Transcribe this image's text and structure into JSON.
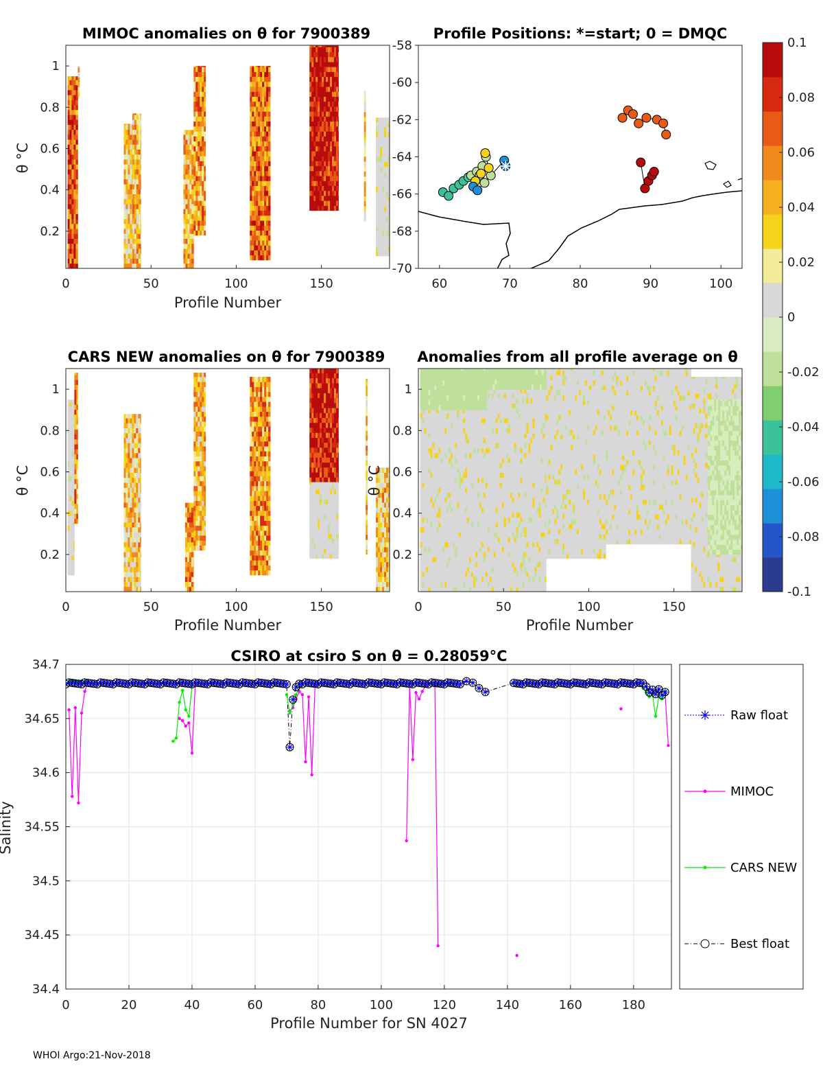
{
  "colors": {
    "raw_float": "#0000ff",
    "mimoc": "#ff00ff",
    "cars_new": "#00ee00",
    "best_float": "#000000",
    "grid": "#e3e3e3",
    "land": "#000000",
    "colorbar": [
      "#2b3b8f",
      "#2556c9",
      "#1f8fd8",
      "#1fb8c9",
      "#3cc29a",
      "#7fcf6e",
      "#bfe09a",
      "#d9ecc0",
      "#d8d8d8",
      "#f2eb9a",
      "#f5d31a",
      "#f4b020",
      "#f08a1e",
      "#e85b17",
      "#d62a10",
      "#b80c0c"
    ]
  },
  "chart_data": [
    {
      "id": "mimoc_anom",
      "type": "heatmap",
      "title": "MIMOC anomalies on θ  for 7900389",
      "xlabel": "Profile Number",
      "ylabel": "θ °C",
      "xlim": [
        0,
        190
      ],
      "ylim": [
        0.02,
        1.1
      ],
      "xticks": [
        0,
        50,
        100,
        150
      ],
      "yticks": [
        0.2,
        0.4,
        0.6,
        0.8,
        1
      ],
      "bands": [
        {
          "x": [
            1,
            7
          ],
          "ymin": 0.02,
          "ymax": 0.95,
          "level": 0.07
        },
        {
          "x": [
            7,
            8
          ],
          "ymin": 0.85,
          "ymax": 1.0,
          "level": 0.03
        },
        {
          "x": [
            34,
            39
          ],
          "ymin": 0.02,
          "ymax": 0.72,
          "level": 0.03
        },
        {
          "x": [
            39,
            44
          ],
          "ymin": 0.02,
          "ymax": 0.77,
          "level": 0.04
        },
        {
          "x": [
            69,
            75
          ],
          "ymin": 0.02,
          "ymax": 0.69,
          "level": 0.04
        },
        {
          "x": [
            75,
            82
          ],
          "ymin": 0.18,
          "ymax": 1.0,
          "level": 0.05
        },
        {
          "x": [
            108,
            120
          ],
          "ymin": 0.06,
          "ymax": 1.0,
          "level": 0.06
        },
        {
          "x": [
            143,
            160
          ],
          "ymin": 0.3,
          "ymax": 1.1,
          "level": 0.09
        },
        {
          "x": [
            175,
            176
          ],
          "ymin": 0.25,
          "ymax": 0.88,
          "level": 0.03
        },
        {
          "x": [
            182,
            190
          ],
          "ymin": 0.08,
          "ymax": 0.75,
          "level": 0.0
        }
      ]
    },
    {
      "id": "positions",
      "type": "scatter",
      "title": "Profile Positions: *=start; 0 = DMQC",
      "xlim": [
        57,
        103
      ],
      "ylim": [
        -70,
        -58
      ],
      "xticks": [
        60,
        70,
        80,
        90,
        100
      ],
      "yticks": [
        -58,
        -60,
        -62,
        -64,
        -66,
        -68,
        -70
      ],
      "groups": [
        {
          "level": -0.045,
          "lon": [
            60.5,
            61.3,
            62.0,
            62.8,
            63.4,
            64.1
          ],
          "lat": [
            -65.9,
            -66.1,
            -65.7,
            -65.5,
            -65.3,
            -65.1
          ]
        },
        {
          "level": -0.02,
          "lon": [
            64.5,
            65.3,
            66.1,
            66.6,
            67.3,
            66.4,
            65.7
          ],
          "lat": [
            -65.0,
            -64.8,
            -64.5,
            -64.0,
            -65.0,
            -65.4,
            -65.0
          ]
        },
        {
          "level": 0.03,
          "lon": [
            66.5,
            67.0,
            65.9,
            65.1
          ],
          "lat": [
            -63.8,
            -64.6,
            -64.9,
            -65.3
          ]
        },
        {
          "level": -0.075,
          "lon": [
            64.8,
            65.4,
            69.2,
            69.4
          ],
          "lat": [
            -65.6,
            -65.8,
            -64.2,
            -64.5
          ]
        },
        {
          "level": 0.065,
          "lon": [
            86.0,
            86.8,
            87.5,
            88.3,
            89.4,
            90.9,
            91.8,
            92.2
          ],
          "lat": [
            -61.9,
            -61.5,
            -61.7,
            -62.2,
            -61.9,
            -62.0,
            -62.2,
            -62.8
          ]
        },
        {
          "level": 0.095,
          "lon": [
            88.6,
            89.2,
            89.7,
            90.2,
            90.5
          ],
          "lat": [
            -64.3,
            -65.7,
            -65.3,
            -65.0,
            -64.8
          ]
        }
      ],
      "start_marker": {
        "lon": 69.4,
        "lat": -64.5
      }
    },
    {
      "id": "cars_anom",
      "type": "heatmap",
      "title": "CARS NEW anomalies on θ for 7900389",
      "xlabel": "Profile Number",
      "ylabel": "θ °C",
      "xlim": [
        0,
        190
      ],
      "ylim": [
        0.02,
        1.1
      ],
      "xticks": [
        0,
        50,
        100,
        150
      ],
      "yticks": [
        0.2,
        0.4,
        0.6,
        0.8,
        1
      ],
      "bands": [
        {
          "x": [
            1,
            5
          ],
          "ymin": 0.1,
          "ymax": 0.95,
          "level": 0.0
        },
        {
          "x": [
            5,
            7
          ],
          "ymin": 0.35,
          "ymax": 1.08,
          "level": 0.05
        },
        {
          "x": [
            34,
            44
          ],
          "ymin": 0.02,
          "ymax": 0.88,
          "level": 0.03
        },
        {
          "x": [
            70,
            75
          ],
          "ymin": 0.02,
          "ymax": 0.45,
          "level": 0.05
        },
        {
          "x": [
            75,
            82
          ],
          "ymin": 0.22,
          "ymax": 1.08,
          "level": 0.04
        },
        {
          "x": [
            108,
            120
          ],
          "ymin": 0.1,
          "ymax": 1.06,
          "level": 0.05
        },
        {
          "x": [
            143,
            160
          ],
          "ymin": 0.55,
          "ymax": 1.1,
          "level": 0.09
        },
        {
          "x": [
            143,
            160
          ],
          "ymin": 0.18,
          "ymax": 0.55,
          "level": 0.0
        },
        {
          "x": [
            176,
            177
          ],
          "ymin": 0.2,
          "ymax": 1.05,
          "level": 0.03
        },
        {
          "x": [
            182,
            190
          ],
          "ymin": 0.02,
          "ymax": 0.62,
          "level": 0.03
        }
      ]
    },
    {
      "id": "avg_anom",
      "type": "heatmap",
      "title": "Anomalies from all profile average on θ",
      "xlabel": "Profile Number",
      "ylabel": "θ °C",
      "xlim": [
        0,
        190
      ],
      "ylim": [
        0.02,
        1.1
      ],
      "xticks": [
        0,
        50,
        100,
        150
      ],
      "yticks": [
        0.2,
        0.4,
        0.6,
        0.8,
        1
      ],
      "bands": [
        {
          "x": [
            1,
            75
          ],
          "ymin": 0.02,
          "ymax": 1.1,
          "level": 0.0
        },
        {
          "x": [
            75,
            110
          ],
          "ymin": 0.18,
          "ymax": 1.1,
          "level": 0.0
        },
        {
          "x": [
            110,
            160
          ],
          "ymin": 0.25,
          "ymax": 1.1,
          "level": 0.0
        },
        {
          "x": [
            160,
            190
          ],
          "ymin": 0.02,
          "ymax": 1.06,
          "level": 0.0
        },
        {
          "x": [
            1,
            40
          ],
          "ymin": 0.9,
          "ymax": 1.1,
          "level": -0.018
        },
        {
          "x": [
            40,
            75
          ],
          "ymin": 1.0,
          "ymax": 1.1,
          "level": -0.018
        },
        {
          "x": [
            170,
            190
          ],
          "ymin": 0.2,
          "ymax": 0.95,
          "level": -0.012
        }
      ]
    },
    {
      "id": "colorbar",
      "type": "colorbar",
      "range": [
        -0.1,
        0.1
      ],
      "ticks": [
        0.1,
        0.08,
        0.06,
        0.04,
        0.02,
        0,
        -0.02,
        -0.04,
        -0.06,
        -0.08,
        -0.1
      ],
      "tick_labels": [
        "0.1",
        "0.08",
        "0.06",
        "0.04",
        "0.02",
        "0",
        "-0.02",
        "-0.04",
        "-0.06",
        "-0.08",
        "-0.1"
      ]
    },
    {
      "id": "salinity",
      "type": "line",
      "title": "CSIRO at csiro S on θ = 0.28059°C",
      "xlabel": "Profile Number for SN 4027",
      "ylabel": "Salinity",
      "xlim": [
        0,
        192
      ],
      "ylim": [
        34.4,
        34.7
      ],
      "xticks": [
        0,
        20,
        40,
        60,
        80,
        100,
        120,
        140,
        160,
        180
      ],
      "yticks": [
        34.4,
        34.45,
        34.5,
        34.55,
        34.6,
        34.65,
        34.7
      ],
      "ytick_labels": [
        "34.4",
        "34.45",
        "34.5",
        "34.55",
        "34.6",
        "34.65",
        "34.7"
      ],
      "float_segments": [
        {
          "x0": 0,
          "x1": 70,
          "value": 34.6825
        },
        {
          "x0": 74,
          "x1": 125,
          "value": 34.6825
        },
        {
          "x0": 142,
          "x1": 183,
          "value": 34.6825
        }
      ],
      "float_points": [
        {
          "x": 71,
          "y": 34.6235
        },
        {
          "x": 72,
          "y": 34.6675
        },
        {
          "x": 73,
          "y": 34.679
        },
        {
          "x": 127,
          "y": 34.6845
        },
        {
          "x": 129,
          "y": 34.683
        },
        {
          "x": 131,
          "y": 34.678
        },
        {
          "x": 133,
          "y": 34.6745
        },
        {
          "x": 184,
          "y": 34.6795
        },
        {
          "x": 185,
          "y": 34.674
        },
        {
          "x": 186,
          "y": 34.6765
        },
        {
          "x": 187,
          "y": 34.6725
        },
        {
          "x": 188,
          "y": 34.677
        },
        {
          "x": 189,
          "y": 34.6715
        },
        {
          "x": 190,
          "y": 34.6745
        }
      ],
      "mimoc_segments": [
        {
          "x": [
            1,
            2,
            3,
            4,
            5,
            6,
            7
          ],
          "y": [
            34.658,
            34.578,
            34.66,
            34.572,
            34.655,
            34.675,
            34.684
          ]
        },
        {
          "x": [
            36,
            37,
            38,
            39,
            40,
            41
          ],
          "y": [
            34.65,
            34.648,
            34.643,
            34.646,
            34.618,
            34.68
          ]
        },
        {
          "x": [
            71,
            72,
            73,
            74
          ],
          "y": [
            34.657,
            34.66,
            34.668,
            34.675
          ]
        },
        {
          "x": [
            74,
            75,
            76,
            77,
            78,
            79
          ],
          "y": [
            34.675,
            34.672,
            34.61,
            34.67,
            34.598,
            34.68
          ]
        },
        {
          "x": [
            108,
            109,
            110,
            111,
            112,
            113,
            114
          ],
          "y": [
            34.537,
            34.682,
            34.612,
            34.674,
            34.668,
            34.675,
            34.68
          ]
        },
        {
          "x": [
            117,
            118
          ],
          "y": [
            34.68,
            34.44
          ]
        },
        {
          "x": [
            190,
            191
          ],
          "y": [
            34.673,
            34.625
          ]
        }
      ],
      "mimoc_isolated": [
        {
          "x": 143,
          "y": 34.431
        },
        {
          "x": 176,
          "y": 34.659
        }
      ],
      "cars_segments": [
        {
          "x": [
            1,
            2,
            3,
            4,
            5,
            6,
            7
          ],
          "y": [
            34.684,
            34.685,
            34.685,
            34.684,
            34.685,
            34.684,
            34.683
          ]
        },
        {
          "x": [
            34,
            35,
            36,
            37,
            38,
            39,
            40
          ],
          "y": [
            34.629,
            34.632,
            34.665,
            34.676,
            34.658,
            34.652,
            34.68
          ]
        },
        {
          "x": [
            70,
            71,
            72,
            73,
            74
          ],
          "y": [
            34.672,
            34.655,
            34.663,
            34.672,
            34.679
          ]
        },
        {
          "x": [
            116,
            118,
            120,
            122
          ],
          "y": [
            34.682,
            34.681,
            34.682,
            34.683
          ]
        },
        {
          "x": [
            183,
            184,
            185,
            186,
            187,
            188,
            189,
            190
          ],
          "y": [
            34.678,
            34.674,
            34.67,
            34.672,
            34.652,
            34.67,
            34.668,
            34.675
          ]
        }
      ],
      "legend": [
        {
          "id": "raw",
          "label": "Raw float",
          "style": "raw"
        },
        {
          "id": "mimoc",
          "label": "MIMOC",
          "style": "mimoc"
        },
        {
          "id": "cars",
          "label": "CARS NEW",
          "style": "cars"
        },
        {
          "id": "best",
          "label": "Best float",
          "style": "best"
        }
      ]
    }
  ],
  "footer": "WHOI Argo:21-Nov-2018"
}
